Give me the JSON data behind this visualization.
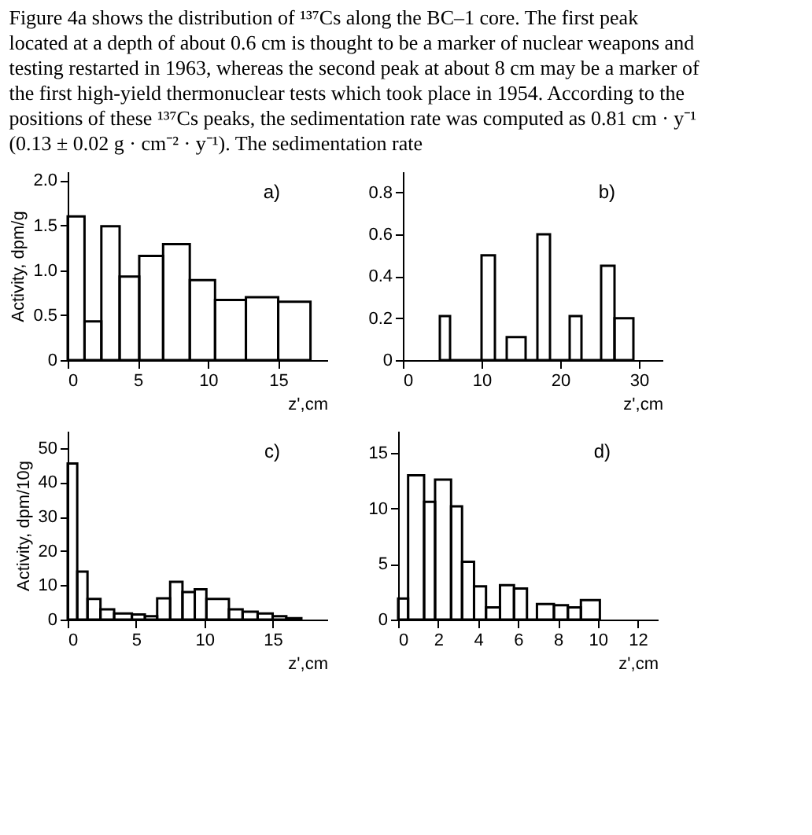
{
  "chart_data": [
    {
      "type": "histogram",
      "annotations": [
        "Figure 4a shows the distribution of ¹³⁷Cs along the BC–1 core. The first peak located at a depth of about 0.6 cm is thought to be a marker of nuclear weapons and testing restarted in 1963, whereas the second peak at about 8 cm may be a marker of the first high-yield thermonuclear tests which took place in 1954. According to the positions of these ¹³⁷Cs peaks, the sedimentation rate was computed as 0.81 cm · y⁻¹ (0.13 ± 0.02 g · cm⁻² · y⁻¹). The sedimentation rate",
        "a)"
      ],
      "xlabel": "z',cm",
      "ylabel": "Activity, dpm/g",
      "bins": [
        0,
        1.2,
        2.4,
        3.7,
        5.1,
        6.8,
        8.7,
        10.5,
        12.7,
        15,
        17.3
      ],
      "values": [
        1.6,
        0.43,
        1.49,
        0.93,
        1.16,
        1.29,
        0.89,
        0.67,
        0.7,
        0.65
      ],
      "xlim": [
        0,
        18.5
      ],
      "xticks": [
        0,
        5,
        10,
        15
      ],
      "ylim": [
        0,
        2.1
      ],
      "yticks": [
        0,
        {
          "value": 0.5,
          "label": "0.5"
        },
        {
          "value": 1.0,
          "label": "1.0"
        },
        {
          "value": 1.5,
          "label": "1.5"
        },
        {
          "value": 2.0,
          "label": "2.0"
        }
      ]
    },
    {
      "type": "histogram",
      "annotations": [
        "b)"
      ],
      "xlabel": "z',cm",
      "bins": [
        4.7,
        6.0,
        10.0,
        11.7,
        13.2,
        15.6,
        17.1,
        18.7,
        21.2,
        22.7,
        25.2,
        26.9,
        29.3
      ],
      "values": [
        0.21,
        0,
        0.5,
        0,
        0.11,
        0,
        0.6,
        0,
        0.21,
        0,
        0.45,
        0.2
      ],
      "xlim": [
        0,
        33
      ],
      "xticks": [
        0,
        10,
        20,
        30
      ],
      "ylim": [
        0,
        0.9
      ],
      "yticks": [
        0,
        {
          "value": 0.2,
          "label": "0.2"
        },
        {
          "value": 0.4,
          "label": "0.4"
        },
        {
          "value": 0.6,
          "label": "0.6"
        },
        {
          "value": 0.8,
          "label": "0.8"
        }
      ]
    },
    {
      "type": "histogram",
      "annotations": [
        "c)"
      ],
      "xlabel": "z',cm",
      "ylabel": "Activity, dpm/10g",
      "bins": [
        0,
        0.7,
        1.45,
        2.4,
        3.4,
        4.7,
        5.65,
        6.55,
        7.5,
        8.4,
        9.3,
        10.15,
        11.8,
        12.8,
        13.9,
        15,
        16,
        17.1
      ],
      "values": [
        45.5,
        14,
        6,
        3,
        1.8,
        1.5,
        1,
        6.2,
        11,
        8,
        8.8,
        6,
        3,
        2.3,
        1.8,
        1,
        0.4
      ],
      "xlim": [
        0,
        19
      ],
      "xticks": [
        0,
        5,
        10,
        15
      ],
      "ylim": [
        0,
        55
      ],
      "yticks": [
        0,
        10,
        20,
        30,
        40,
        50
      ]
    },
    {
      "type": "histogram",
      "annotations": [
        "d)"
      ],
      "xlabel": "z',cm",
      "bins": [
        0,
        0.5,
        1.3,
        1.85,
        2.65,
        3.2,
        3.8,
        4.4,
        5.1,
        5.8,
        6.45,
        6.95,
        7.8,
        8.5,
        9.15,
        10.1
      ],
      "values": [
        1.9,
        13,
        10.6,
        12.6,
        10.2,
        5.2,
        3,
        1.1,
        3.1,
        2.8,
        0,
        1.4,
        1.3,
        1.1,
        1.75
      ],
      "xlim": [
        0,
        13
      ],
      "xticks": [
        0,
        2,
        4,
        6,
        8,
        10,
        12
      ],
      "ylim": [
        0,
        17
      ],
      "yticks": [
        0,
        5,
        10,
        15
      ]
    }
  ]
}
